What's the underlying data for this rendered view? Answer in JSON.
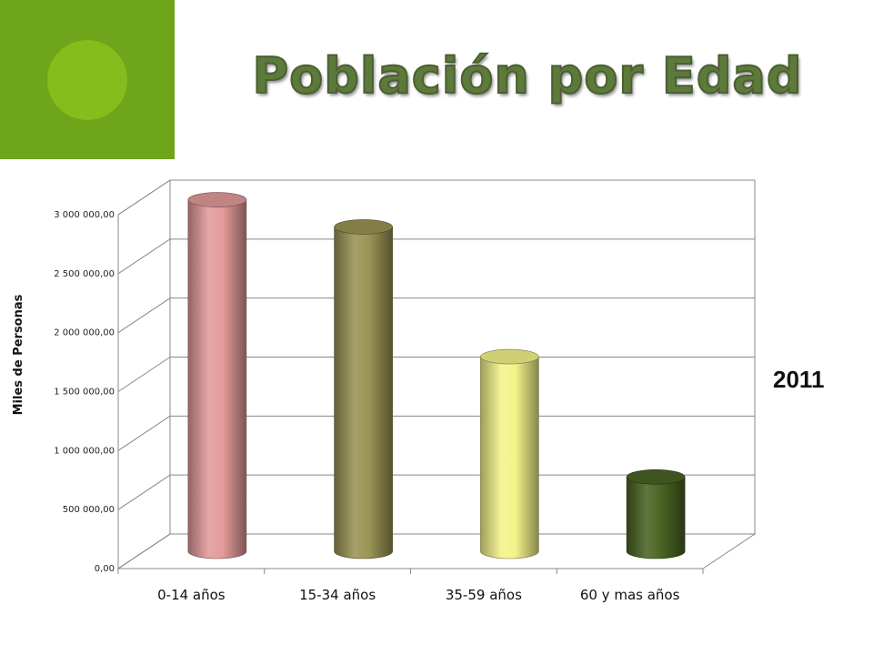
{
  "slide": {
    "title": "Población por Edad",
    "year": "2011"
  },
  "chart_data": {
    "type": "bar",
    "style": "3d-cylinder",
    "categories": [
      "0-14 años",
      "15-34 años",
      "35-59 años",
      "60 y mas años"
    ],
    "values": [
      2980000,
      2750000,
      1650000,
      630000
    ],
    "colors": [
      "#e49a9a",
      "#9a9455",
      "#f3f38a",
      "#4a6424"
    ],
    "ylabel": "Miles de Personas",
    "ylim": [
      0,
      3000000
    ],
    "yticks": [
      0,
      500000,
      1000000,
      1500000,
      2000000,
      2500000,
      3000000
    ],
    "ytick_labels": [
      "0,00",
      "500 000,00",
      "1 000 000,00",
      "1 500 000,00",
      "2 000 000,00",
      "2 500 000,00",
      "3 000 000,00"
    ],
    "grid": true,
    "legend": "none"
  },
  "colors": {
    "accent_block": "#6ea51a",
    "accent_circle": "#84bd1c",
    "title": "#5c7a3a"
  }
}
